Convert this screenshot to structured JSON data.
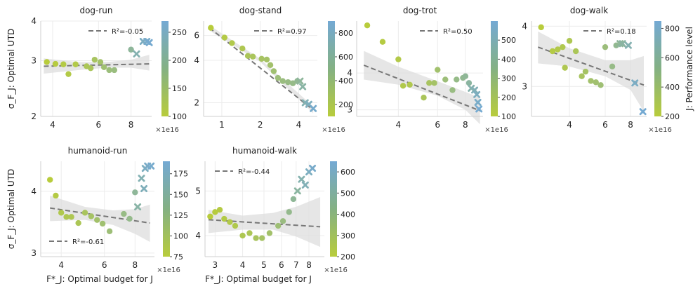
{
  "figure": {
    "y_axis_label": "σ_F_J: Optimal UTD",
    "x_axis_label": "F*_J: Optimal budget for J",
    "colorbar_label": "J: Performance level",
    "x_offset_label": "×1e16"
  },
  "colors": {
    "low": "#b8cc3c",
    "high": "#74a9d4",
    "fit_line": "#777777",
    "band": "#dddddd"
  },
  "chart_data": [
    {
      "type": "scatter",
      "title": "dog-run",
      "xscale": "log",
      "yscale": "log",
      "xlim": [
        3.6,
        9.6
      ],
      "ylim": [
        2.0,
        4.0
      ],
      "xticks": [
        4,
        6,
        8
      ],
      "yticks": [
        2,
        3,
        4
      ],
      "r2_label": "R²=-0.05",
      "legend_position": "top-right",
      "fit": {
        "x": [
          3.7,
          9.4
        ],
        "y": [
          2.88,
          2.93
        ]
      },
      "band": {
        "x": [
          3.7,
          5.0,
          6.5,
          8.0,
          9.4
        ],
        "upper": [
          3.05,
          2.97,
          2.97,
          3.02,
          3.13
        ],
        "lower": [
          2.73,
          2.8,
          2.85,
          2.85,
          2.79
        ]
      },
      "colorbar": {
        "min": 100,
        "max": 270,
        "ticks": [
          100,
          150,
          200,
          250
        ]
      },
      "points": [
        {
          "x": 3.8,
          "y": 2.97,
          "c": 100,
          "m": "o"
        },
        {
          "x": 4.1,
          "y": 2.93,
          "c": 105,
          "m": "o"
        },
        {
          "x": 4.4,
          "y": 2.92,
          "c": 110,
          "m": "o"
        },
        {
          "x": 4.6,
          "y": 2.72,
          "c": 112,
          "m": "o"
        },
        {
          "x": 4.9,
          "y": 2.92,
          "c": 115,
          "m": "o"
        },
        {
          "x": 5.4,
          "y": 2.88,
          "c": 130,
          "m": "o"
        },
        {
          "x": 5.6,
          "y": 2.84,
          "c": 135,
          "m": "o"
        },
        {
          "x": 5.8,
          "y": 3.02,
          "c": 140,
          "m": "o"
        },
        {
          "x": 6.1,
          "y": 2.97,
          "c": 150,
          "m": "o"
        },
        {
          "x": 6.3,
          "y": 2.86,
          "c": 160,
          "m": "o"
        },
        {
          "x": 6.6,
          "y": 2.8,
          "c": 170,
          "m": "o"
        },
        {
          "x": 6.9,
          "y": 2.8,
          "c": 175,
          "m": "o"
        },
        {
          "x": 8.0,
          "y": 3.25,
          "c": 205,
          "m": "o"
        },
        {
          "x": 8.4,
          "y": 3.15,
          "c": 230,
          "m": "x"
        },
        {
          "x": 8.9,
          "y": 3.45,
          "c": 250,
          "m": "x"
        },
        {
          "x": 9.2,
          "y": 3.45,
          "c": 260,
          "m": "x"
        },
        {
          "x": 9.4,
          "y": 3.42,
          "c": 265,
          "m": "x"
        }
      ]
    },
    {
      "type": "scatter",
      "title": "dog-stand",
      "xscale": "log",
      "yscale": "log",
      "xlim": [
        0.72,
        5.6
      ],
      "ylim": [
        1.6,
        7.6
      ],
      "xticks": [
        1,
        2,
        4
      ],
      "yticks": [
        2,
        4,
        6
      ],
      "r2_label": "R²=0.97",
      "legend_position": "top-right",
      "fit": {
        "x": [
          0.8,
          5.2
        ],
        "y": [
          6.8,
          1.78
        ]
      },
      "band": {
        "x": [
          0.8,
          2.0,
          5.2
        ],
        "upper": [
          7.1,
          4.1,
          1.88
        ],
        "lower": [
          6.5,
          3.9,
          1.68
        ]
      },
      "colorbar": {
        "min": 100,
        "max": 900,
        "ticks": [
          200,
          400,
          600,
          800
        ]
      },
      "points": [
        {
          "x": 0.82,
          "y": 6.8,
          "c": 100,
          "m": "o"
        },
        {
          "x": 1.05,
          "y": 5.8,
          "c": 150,
          "m": "o"
        },
        {
          "x": 1.2,
          "y": 5.3,
          "c": 180,
          "m": "o"
        },
        {
          "x": 1.45,
          "y": 4.85,
          "c": 210,
          "m": "o"
        },
        {
          "x": 1.6,
          "y": 4.3,
          "c": 250,
          "m": "o"
        },
        {
          "x": 1.75,
          "y": 4.25,
          "c": 270,
          "m": "o"
        },
        {
          "x": 2.05,
          "y": 4.1,
          "c": 300,
          "m": "o"
        },
        {
          "x": 2.25,
          "y": 4.05,
          "c": 320,
          "m": "o"
        },
        {
          "x": 2.4,
          "y": 3.7,
          "c": 350,
          "m": "o"
        },
        {
          "x": 2.55,
          "y": 3.35,
          "c": 380,
          "m": "o"
        },
        {
          "x": 2.75,
          "y": 3.0,
          "c": 420,
          "m": "o"
        },
        {
          "x": 3.0,
          "y": 2.85,
          "c": 450,
          "m": "o"
        },
        {
          "x": 3.3,
          "y": 2.8,
          "c": 480,
          "m": "o"
        },
        {
          "x": 3.6,
          "y": 2.75,
          "c": 500,
          "m": "o"
        },
        {
          "x": 3.9,
          "y": 2.85,
          "c": 550,
          "m": "o"
        },
        {
          "x": 4.1,
          "y": 2.85,
          "c": 600,
          "m": "x"
        },
        {
          "x": 4.3,
          "y": 2.6,
          "c": 650,
          "m": "x"
        },
        {
          "x": 4.5,
          "y": 2.0,
          "c": 720,
          "m": "x"
        },
        {
          "x": 4.8,
          "y": 1.95,
          "c": 780,
          "m": "x"
        },
        {
          "x": 5.2,
          "y": 1.82,
          "c": 860,
          "m": "x"
        }
      ]
    },
    {
      "type": "scatter",
      "title": "dog-trot",
      "xscale": "log",
      "yscale": "log",
      "xlim": [
        2.6,
        9.6
      ],
      "ylim": [
        2.85,
        6.0
      ],
      "xticks": [
        4,
        6,
        8
      ],
      "yticks": [
        3,
        4
      ],
      "r2_label": "R²=0.50",
      "legend_position": "top-right",
      "fit": {
        "x": [
          2.8,
          9.3
        ],
        "y": [
          4.25,
          2.98
        ]
      },
      "band": {
        "x": [
          2.8,
          4.0,
          6.0,
          8.0,
          9.3
        ],
        "upper": [
          4.75,
          4.2,
          3.75,
          3.45,
          3.3
        ],
        "lower": [
          3.8,
          3.65,
          3.35,
          3.0,
          2.68
        ]
      },
      "colorbar": {
        "min": 100,
        "max": 600,
        "ticks": [
          100,
          200,
          300,
          400,
          500
        ]
      },
      "points": [
        {
          "x": 2.9,
          "y": 5.8,
          "c": 100,
          "m": "o"
        },
        {
          "x": 3.4,
          "y": 5.1,
          "c": 120,
          "m": "o"
        },
        {
          "x": 4.0,
          "y": 4.45,
          "c": 140,
          "m": "o"
        },
        {
          "x": 4.2,
          "y": 3.62,
          "c": 150,
          "m": "o"
        },
        {
          "x": 4.5,
          "y": 3.65,
          "c": 160,
          "m": "o"
        },
        {
          "x": 5.2,
          "y": 3.3,
          "c": 200,
          "m": "o"
        },
        {
          "x": 5.5,
          "y": 3.7,
          "c": 220,
          "m": "o"
        },
        {
          "x": 5.8,
          "y": 3.7,
          "c": 240,
          "m": "o"
        },
        {
          "x": 6.0,
          "y": 4.1,
          "c": 260,
          "m": "o"
        },
        {
          "x": 6.5,
          "y": 3.8,
          "c": 300,
          "m": "o"
        },
        {
          "x": 7.0,
          "y": 3.5,
          "c": 330,
          "m": "o"
        },
        {
          "x": 7.3,
          "y": 3.8,
          "c": 350,
          "m": "o"
        },
        {
          "x": 7.8,
          "y": 3.85,
          "c": 380,
          "m": "o"
        },
        {
          "x": 8.0,
          "y": 3.9,
          "c": 400,
          "m": "o"
        },
        {
          "x": 8.3,
          "y": 3.7,
          "c": 430,
          "m": "o"
        },
        {
          "x": 8.5,
          "y": 3.55,
          "c": 470,
          "m": "x"
        },
        {
          "x": 8.8,
          "y": 3.5,
          "c": 500,
          "m": "x"
        },
        {
          "x": 9.0,
          "y": 3.38,
          "c": 530,
          "m": "x"
        },
        {
          "x": 9.1,
          "y": 3.18,
          "c": 560,
          "m": "x"
        },
        {
          "x": 9.2,
          "y": 3.02,
          "c": 590,
          "m": "x"
        }
      ]
    },
    {
      "type": "scatter",
      "title": "dog-walk",
      "xscale": "log",
      "yscale": "log",
      "xlim": [
        2.6,
        9.6
      ],
      "ylim": [
        2.6,
        4.1
      ],
      "xticks": [
        4,
        6,
        8
      ],
      "yticks": [
        3,
        4
      ],
      "r2_label": "R²=0.18",
      "legend_position": "top-right",
      "fit": {
        "x": [
          2.8,
          9.3
        ],
        "y": [
          3.62,
          3.02
        ]
      },
      "band": {
        "x": [
          2.8,
          4.0,
          6.0,
          8.0,
          9.3
        ],
        "upper": [
          3.9,
          3.6,
          3.4,
          3.4,
          3.47
        ],
        "lower": [
          3.35,
          3.3,
          3.15,
          2.95,
          2.66
        ]
      },
      "colorbar": {
        "min": 200,
        "max": 850,
        "ticks": [
          200,
          400,
          600,
          800
        ]
      },
      "points": [
        {
          "x": 2.9,
          "y": 3.98,
          "c": 200,
          "m": "o"
        },
        {
          "x": 3.3,
          "y": 3.55,
          "c": 240,
          "m": "o"
        },
        {
          "x": 3.5,
          "y": 3.58,
          "c": 260,
          "m": "o"
        },
        {
          "x": 3.7,
          "y": 3.62,
          "c": 280,
          "m": "o"
        },
        {
          "x": 3.8,
          "y": 3.28,
          "c": 290,
          "m": "o"
        },
        {
          "x": 4.0,
          "y": 3.73,
          "c": 300,
          "m": "o"
        },
        {
          "x": 4.3,
          "y": 3.55,
          "c": 320,
          "m": "o"
        },
        {
          "x": 4.6,
          "y": 3.15,
          "c": 350,
          "m": "o"
        },
        {
          "x": 4.8,
          "y": 3.22,
          "c": 370,
          "m": "o"
        },
        {
          "x": 5.1,
          "y": 3.08,
          "c": 400,
          "m": "o"
        },
        {
          "x": 5.4,
          "y": 3.06,
          "c": 420,
          "m": "o"
        },
        {
          "x": 5.7,
          "y": 3.02,
          "c": 440,
          "m": "o"
        },
        {
          "x": 6.0,
          "y": 3.62,
          "c": 470,
          "m": "o"
        },
        {
          "x": 6.5,
          "y": 3.3,
          "c": 520,
          "m": "o"
        },
        {
          "x": 6.8,
          "y": 3.65,
          "c": 560,
          "m": "o"
        },
        {
          "x": 7.1,
          "y": 3.68,
          "c": 600,
          "m": "x"
        },
        {
          "x": 7.3,
          "y": 3.68,
          "c": 640,
          "m": "x"
        },
        {
          "x": 7.8,
          "y": 3.65,
          "c": 700,
          "m": "x"
        },
        {
          "x": 8.4,
          "y": 3.05,
          "c": 780,
          "m": "x"
        },
        {
          "x": 9.2,
          "y": 2.66,
          "c": 840,
          "m": "x"
        }
      ]
    },
    {
      "type": "scatter",
      "title": "humanoid-run",
      "xscale": "log",
      "yscale": "log",
      "xlim": [
        3.3,
        9.6
      ],
      "ylim": [
        2.95,
        4.6
      ],
      "xticks": [
        4,
        6,
        8
      ],
      "yticks": [
        3,
        4
      ],
      "r2_label": "R²=-0.61",
      "legend_position": "bottom-left",
      "fit": {
        "x": [
          3.6,
          9.2
        ],
        "y": [
          3.7,
          3.45
        ]
      },
      "band": {
        "x": [
          3.6,
          5.0,
          6.5,
          8.0,
          9.2
        ],
        "upper": [
          3.92,
          3.72,
          3.66,
          3.68,
          3.76
        ],
        "lower": [
          3.48,
          3.5,
          3.42,
          3.28,
          3.16
        ]
      },
      "colorbar": {
        "min": 75,
        "max": 190,
        "ticks": [
          75,
          100,
          125,
          150,
          175
        ]
      },
      "points": [
        {
          "x": 3.6,
          "y": 4.22,
          "c": 75,
          "m": "o"
        },
        {
          "x": 3.8,
          "y": 3.92,
          "c": 82,
          "m": "o"
        },
        {
          "x": 4.0,
          "y": 3.62,
          "c": 88,
          "m": "o"
        },
        {
          "x": 4.2,
          "y": 3.55,
          "c": 90,
          "m": "o"
        },
        {
          "x": 4.4,
          "y": 3.55,
          "c": 92,
          "m": "o"
        },
        {
          "x": 4.7,
          "y": 3.45,
          "c": 95,
          "m": "o"
        },
        {
          "x": 5.0,
          "y": 3.62,
          "c": 100,
          "m": "o"
        },
        {
          "x": 5.3,
          "y": 3.56,
          "c": 105,
          "m": "o"
        },
        {
          "x": 5.6,
          "y": 3.5,
          "c": 110,
          "m": "o"
        },
        {
          "x": 5.9,
          "y": 3.44,
          "c": 115,
          "m": "o"
        },
        {
          "x": 6.3,
          "y": 3.32,
          "c": 120,
          "m": "o"
        },
        {
          "x": 7.2,
          "y": 3.6,
          "c": 130,
          "m": "o"
        },
        {
          "x": 7.6,
          "y": 3.52,
          "c": 135,
          "m": "o"
        },
        {
          "x": 8.0,
          "y": 3.98,
          "c": 145,
          "m": "o"
        },
        {
          "x": 8.2,
          "y": 3.72,
          "c": 155,
          "m": "x"
        },
        {
          "x": 8.5,
          "y": 4.25,
          "c": 165,
          "m": "x"
        },
        {
          "x": 8.7,
          "y": 4.05,
          "c": 170,
          "m": "x"
        },
        {
          "x": 8.8,
          "y": 4.45,
          "c": 175,
          "m": "x"
        },
        {
          "x": 9.0,
          "y": 4.5,
          "c": 180,
          "m": "x"
        },
        {
          "x": 9.3,
          "y": 4.5,
          "c": 185,
          "m": "x"
        }
      ]
    },
    {
      "type": "scatter",
      "title": "humanoid-walk",
      "xscale": "log",
      "yscale": "log",
      "xlim": [
        2.7,
        9.4
      ],
      "ylim": [
        3.6,
        5.8
      ],
      "xticks": [
        3,
        4,
        5,
        6,
        7,
        8
      ],
      "yticks": [
        4,
        5
      ],
      "r2_label": "R²=-0.44",
      "legend_position": "top-left",
      "fit": {
        "x": [
          2.8,
          9.0
        ],
        "y": [
          4.33,
          4.18
        ]
      },
      "band": {
        "x": [
          2.8,
          4.0,
          5.5,
          7.0,
          9.0
        ],
        "upper": [
          4.55,
          4.42,
          4.48,
          4.62,
          4.85
        ],
        "lower": [
          4.05,
          4.12,
          4.12,
          3.98,
          3.78
        ]
      },
      "colorbar": {
        "min": 200,
        "max": 650,
        "ticks": [
          200,
          300,
          400,
          500,
          600
        ]
      },
      "points": [
        {
          "x": 2.85,
          "y": 4.4,
          "c": 200,
          "m": "o"
        },
        {
          "x": 3.0,
          "y": 4.5,
          "c": 210,
          "m": "o"
        },
        {
          "x": 3.15,
          "y": 4.55,
          "c": 220,
          "m": "o"
        },
        {
          "x": 3.3,
          "y": 4.35,
          "c": 230,
          "m": "o"
        },
        {
          "x": 3.5,
          "y": 4.28,
          "c": 240,
          "m": "o"
        },
        {
          "x": 3.7,
          "y": 4.2,
          "c": 250,
          "m": "o"
        },
        {
          "x": 4.0,
          "y": 4.0,
          "c": 265,
          "m": "o"
        },
        {
          "x": 4.3,
          "y": 4.05,
          "c": 280,
          "m": "o"
        },
        {
          "x": 4.6,
          "y": 3.95,
          "c": 300,
          "m": "o"
        },
        {
          "x": 4.9,
          "y": 3.95,
          "c": 320,
          "m": "o"
        },
        {
          "x": 5.3,
          "y": 4.05,
          "c": 340,
          "m": "o"
        },
        {
          "x": 5.8,
          "y": 4.2,
          "c": 370,
          "m": "o"
        },
        {
          "x": 6.1,
          "y": 4.3,
          "c": 400,
          "m": "o"
        },
        {
          "x": 6.5,
          "y": 4.5,
          "c": 440,
          "m": "o"
        },
        {
          "x": 6.8,
          "y": 4.8,
          "c": 470,
          "m": "o"
        },
        {
          "x": 7.1,
          "y": 5.0,
          "c": 500,
          "m": "x"
        },
        {
          "x": 7.4,
          "y": 5.3,
          "c": 540,
          "m": "x"
        },
        {
          "x": 7.7,
          "y": 5.15,
          "c": 560,
          "m": "x"
        },
        {
          "x": 8.0,
          "y": 5.5,
          "c": 590,
          "m": "x"
        },
        {
          "x": 8.3,
          "y": 5.6,
          "c": 620,
          "m": "x"
        }
      ]
    }
  ]
}
